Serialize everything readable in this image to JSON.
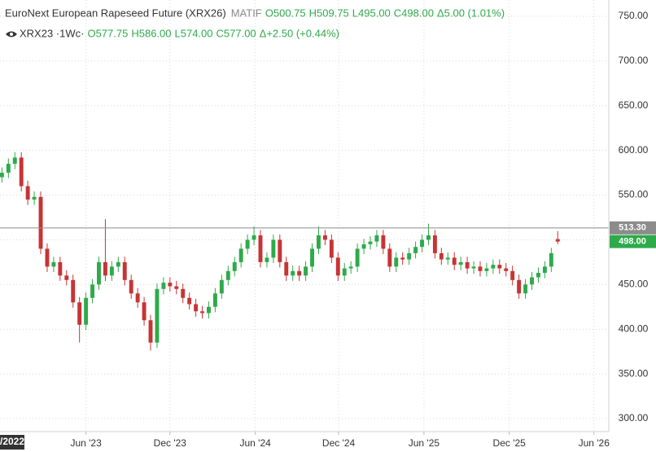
{
  "chart_data": {
    "type": "candlestick",
    "title": "EuroNext European Rapeseed Future (XRX26)",
    "exchange": "MATIF",
    "header_values": [
      "O500.75",
      "H509.75",
      "L495.00",
      "C498.00",
      "Δ5.00 (1.01%)"
    ],
    "compare_symbol": "XRX23 ·1Wc·",
    "compare_values": [
      "O577.75",
      "H586.00",
      "L574.00",
      "C577.00",
      "Δ+2.50 (+0.44%)"
    ],
    "up_color": "#2eaa4a",
    "down_color": "#c73434",
    "grid": true,
    "cursor_label": "/2022",
    "xlim": [
      -0.3,
      93.9
    ],
    "xticks": [
      {
        "value": 13,
        "label": "Jun '23"
      },
      {
        "value": 26,
        "label": "Dec '23"
      },
      {
        "value": 39.2,
        "label": "Jun '24"
      },
      {
        "value": 52.1,
        "label": "Dec '24"
      },
      {
        "value": 65.3,
        "label": "Jun '25"
      },
      {
        "value": 78.5,
        "label": "Dec '25"
      },
      {
        "value": 91.6,
        "label": "Jun '26"
      }
    ],
    "ylim": [
      285.4,
      768.2
    ],
    "yticks": [
      {
        "value": 300,
        "label": "300.00"
      },
      {
        "value": 350,
        "label": "350.00"
      },
      {
        "value": 400,
        "label": "400.00"
      },
      {
        "value": 450,
        "label": "450.00"
      },
      {
        "value": 500,
        "label": "500.00"
      },
      {
        "value": 550,
        "label": "550.00"
      },
      {
        "value": 600,
        "label": "600.00"
      },
      {
        "value": 650,
        "label": "650.00"
      },
      {
        "value": 700,
        "label": "700.00"
      },
      {
        "value": 750,
        "label": "750.00"
      }
    ],
    "price_lines": [
      {
        "value": 513.3,
        "label": "513.30",
        "color": "#8c8c8c",
        "line": true
      },
      {
        "value": 498,
        "label": "498.00",
        "color": "#2eaa4a",
        "line": false
      }
    ],
    "open": [
      570,
      575,
      585,
      592,
      560,
      545,
      548,
      490,
      470,
      475,
      460,
      455,
      430,
      405,
      435,
      450,
      475,
      460,
      470,
      475,
      455,
      440,
      430,
      410,
      385,
      445,
      452,
      448,
      445,
      435,
      428,
      420,
      418,
      425,
      440,
      455,
      465,
      475,
      490,
      500,
      505,
      475,
      480,
      500,
      475,
      460,
      465,
      460,
      470,
      490,
      505,
      500,
      480,
      460,
      468,
      470,
      490,
      495,
      498,
      505,
      490,
      470,
      480,
      478,
      485,
      492,
      500,
      505,
      485,
      478,
      480,
      472,
      475,
      468,
      470,
      465,
      468,
      472,
      468,
      465,
      455,
      440,
      450,
      458,
      463,
      470,
      500.75
    ],
    "high": [
      581,
      591,
      598,
      598,
      566,
      554,
      554,
      496,
      481,
      481,
      466,
      461,
      436,
      441,
      456,
      481,
      523,
      476,
      481,
      481,
      461,
      446,
      436,
      416,
      451,
      458,
      458,
      454,
      451,
      441,
      434,
      426,
      431,
      446,
      461,
      471,
      481,
      496,
      506,
      515,
      511,
      486,
      506,
      506,
      481,
      471,
      471,
      476,
      496,
      515,
      511,
      506,
      486,
      474,
      476,
      496,
      501,
      504,
      511,
      511,
      496,
      486,
      486,
      491,
      498,
      506,
      518,
      511,
      491,
      486,
      486,
      481,
      481,
      476,
      476,
      474,
      478,
      478,
      474,
      471,
      461,
      456,
      464,
      469,
      476,
      491,
      509.75
    ],
    "low": [
      564,
      569,
      579,
      554,
      539,
      539,
      484,
      464,
      464,
      454,
      449,
      424,
      385,
      399,
      429,
      444,
      454,
      454,
      464,
      449,
      434,
      424,
      404,
      376,
      379,
      439,
      442,
      439,
      429,
      422,
      414,
      412,
      412,
      419,
      434,
      449,
      459,
      469,
      484,
      494,
      469,
      469,
      474,
      469,
      454,
      454,
      454,
      454,
      464,
      484,
      494,
      474,
      454,
      454,
      462,
      464,
      484,
      489,
      492,
      484,
      464,
      464,
      472,
      472,
      479,
      486,
      494,
      479,
      472,
      472,
      466,
      466,
      462,
      462,
      459,
      459,
      462,
      462,
      459,
      449,
      434,
      434,
      444,
      452,
      457,
      464,
      495
    ],
    "close": [
      575,
      585,
      592,
      560,
      545,
      548,
      490,
      470,
      475,
      460,
      455,
      430,
      405,
      435,
      450,
      475,
      460,
      470,
      475,
      455,
      440,
      430,
      410,
      385,
      445,
      452,
      448,
      445,
      435,
      428,
      420,
      418,
      425,
      440,
      455,
      465,
      475,
      490,
      500,
      505,
      475,
      480,
      500,
      475,
      460,
      465,
      460,
      470,
      490,
      505,
      500,
      480,
      460,
      468,
      470,
      490,
      495,
      498,
      505,
      490,
      470,
      480,
      478,
      485,
      492,
      500,
      505,
      485,
      478,
      480,
      472,
      475,
      468,
      470,
      465,
      468,
      472,
      468,
      465,
      455,
      440,
      450,
      458,
      463,
      470,
      485,
      498
    ]
  }
}
